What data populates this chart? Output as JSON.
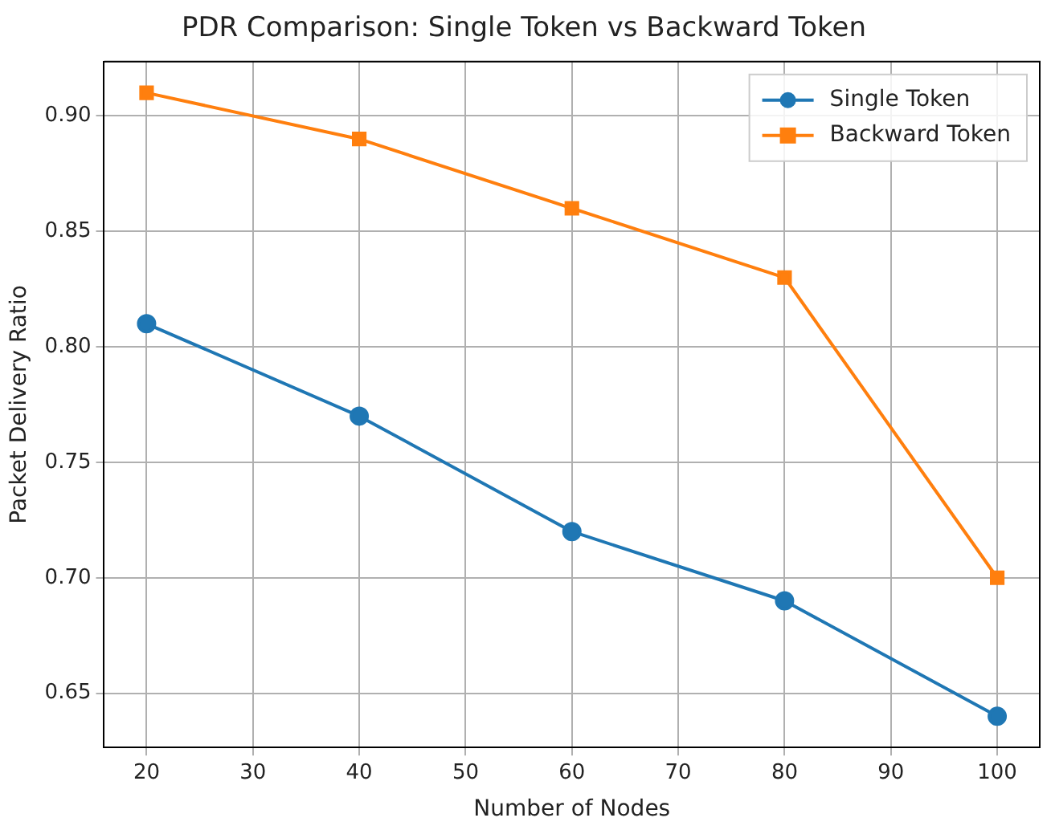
{
  "chart_data": {
    "type": "line",
    "title": "PDR Comparison: Single Token vs Backward Token",
    "xlabel": "Number of Nodes",
    "ylabel": "Packet Delivery Ratio",
    "x": [
      20,
      40,
      60,
      80,
      100
    ],
    "series": [
      {
        "name": "Single Token",
        "color": "#1f77b4",
        "marker": "circle",
        "values": [
          0.81,
          0.77,
          0.72,
          0.69,
          0.64
        ]
      },
      {
        "name": "Backward Token",
        "color": "#ff7f0e",
        "marker": "square",
        "values": [
          0.91,
          0.89,
          0.86,
          0.83,
          0.7
        ]
      }
    ],
    "xlim": [
      16,
      104
    ],
    "xticks": [
      20,
      30,
      40,
      50,
      60,
      70,
      80,
      90,
      100
    ],
    "ylim": [
      0.6265,
      0.9235
    ],
    "yticks": [
      0.65,
      {
        "value": 0.7,
        "label": "0.70"
      },
      0.75,
      {
        "value": 0.8,
        "label": "0.80"
      },
      0.85,
      {
        "value": 0.9,
        "label": "0.90"
      }
    ],
    "grid": true,
    "legend": "top right",
    "line_style": "solid"
  }
}
